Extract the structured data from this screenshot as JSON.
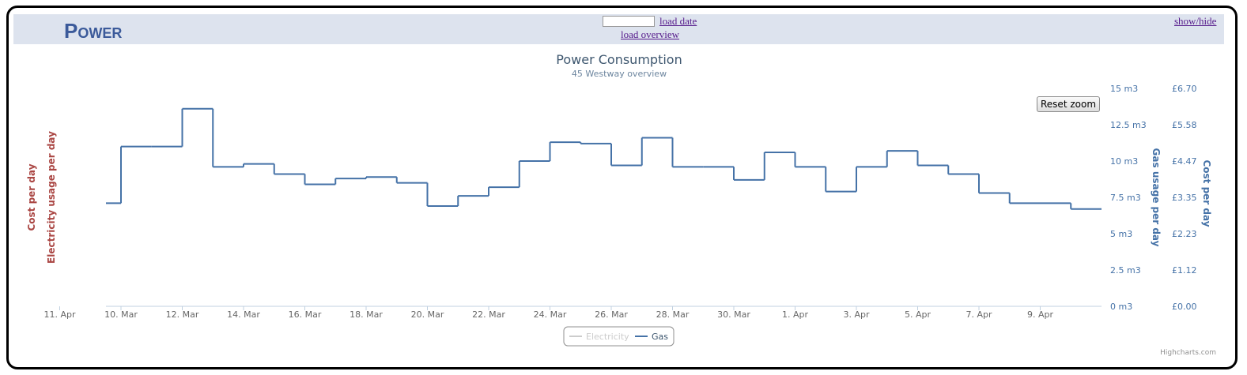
{
  "header": {
    "title": "Power",
    "load_date": "load date",
    "load_overview": "load overview",
    "show_hide": "show/hide"
  },
  "chart_data": {
    "type": "step",
    "title": "Power Consumption",
    "subtitle": "45 Westway overview",
    "reset_zoom": "Reset zoom",
    "credits": "Highcharts.com",
    "left_axis_titles": [
      "Cost per day",
      "Electricity usage per day"
    ],
    "ylabel": "Gas usage per day",
    "y2label": "Cost per day",
    "x": [
      "9. Mar",
      "10. Mar",
      "11. Mar",
      "12. Mar",
      "13. Mar",
      "14. Mar",
      "15. Mar",
      "16. Mar",
      "17. Mar",
      "18. Mar",
      "19. Mar",
      "20. Mar",
      "21. Mar",
      "22. Mar",
      "23. Mar",
      "24. Mar",
      "25. Mar",
      "26. Mar",
      "27. Mar",
      "28. Mar",
      "29. Mar",
      "30. Mar",
      "31. Mar",
      "1. Apr",
      "2. Apr",
      "3. Apr",
      "4. Apr",
      "5. Apr",
      "6. Apr",
      "7. Apr",
      "8. Apr",
      "9. Apr",
      "10. Apr"
    ],
    "xticks": [
      "10. Mar",
      "12. Mar",
      "14. Mar",
      "16. Mar",
      "18. Mar",
      "20. Mar",
      "22. Mar",
      "24. Mar",
      "26. Mar",
      "28. Mar",
      "30. Mar",
      "1. Apr",
      "3. Apr",
      "5. Apr",
      "7. Apr",
      "9. Apr",
      "11. Apr"
    ],
    "ylim": [
      0,
      15
    ],
    "yticks": [
      {
        "value": 0,
        "label": "0 m3"
      },
      {
        "value": 2.5,
        "label": "2.5 m3"
      },
      {
        "value": 5,
        "label": "5 m3"
      },
      {
        "value": 7.5,
        "label": "7.5 m3"
      },
      {
        "value": 10,
        "label": "10 m3"
      },
      {
        "value": 12.5,
        "label": "12.5 m3"
      },
      {
        "value": 15,
        "label": "15 m3"
      }
    ],
    "y2lim": [
      0,
      6.7
    ],
    "y2ticks": [
      {
        "value": 0,
        "label": "£0.00"
      },
      {
        "value": 1.12,
        "label": "£1.12"
      },
      {
        "value": 2.23,
        "label": "£2.23"
      },
      {
        "value": 3.35,
        "label": "£3.35"
      },
      {
        "value": 4.47,
        "label": "£4.47"
      },
      {
        "value": 5.58,
        "label": "£5.58"
      },
      {
        "value": 6.7,
        "label": "£6.70"
      }
    ],
    "grid": false,
    "series": [
      {
        "name": "Electricity",
        "color": "#cccccc",
        "visible": false
      },
      {
        "name": "Gas",
        "color": "#4572a7",
        "visible": true,
        "values": [
          7.1,
          11,
          11,
          13.6,
          9.6,
          9.8,
          9.1,
          8.4,
          8.8,
          8.9,
          8.5,
          6.9,
          7.6,
          8.2,
          10,
          11.3,
          11.2,
          9.7,
          11.6,
          9.6,
          9.6,
          8.7,
          10.6,
          9.6,
          7.9,
          9.6,
          10.7,
          9.7,
          9.1,
          7.8,
          7.1,
          7.1,
          6.7
        ]
      }
    ]
  }
}
